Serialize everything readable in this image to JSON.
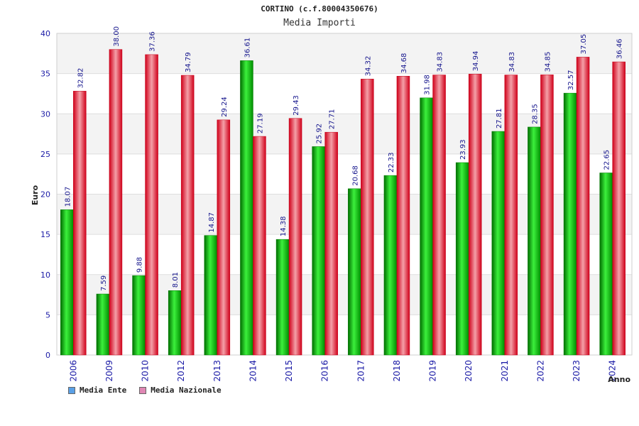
{
  "chart_data": {
    "type": "bar",
    "title": "CORTINO (c.f.80004350676)",
    "subtitle": "Media Importi",
    "xlabel": "Anno",
    "ylabel": "Euro",
    "ylim": [
      0,
      40
    ],
    "yticks": [
      0,
      5,
      10,
      15,
      20,
      25,
      30,
      35,
      40
    ],
    "grid": true,
    "legend_position": "bottom-left",
    "categories": [
      "2006",
      "2009",
      "2010",
      "2012",
      "2013",
      "2014",
      "2015",
      "2016",
      "2017",
      "2018",
      "2019",
      "2020",
      "2021",
      "2022",
      "2023",
      "2024"
    ],
    "series": [
      {
        "name": "Media Ente",
        "color": "#00b400",
        "legend_color": "#5aa0e6",
        "values": [
          18.07,
          7.59,
          9.88,
          8.01,
          14.87,
          36.61,
          14.38,
          25.92,
          20.68,
          22.33,
          31.98,
          23.93,
          27.81,
          28.35,
          32.57,
          22.65
        ]
      },
      {
        "name": "Media Nazionale",
        "color": "#e8192c",
        "legend_color": "#e087b4",
        "values": [
          32.82,
          38.0,
          37.36,
          34.79,
          29.24,
          27.19,
          29.43,
          27.71,
          34.32,
          34.68,
          34.83,
          34.94,
          34.83,
          34.85,
          37.05,
          36.46
        ]
      }
    ],
    "data_labels": {
      "series_0": [
        "18.07",
        "7.59",
        "9.88",
        "8.01",
        "14.87",
        "36.61",
        "14.38",
        "25.92",
        "20.68",
        "22.33",
        "31.98",
        "23.93",
        "27.81",
        "28.35",
        "32.57",
        "22.65"
      ],
      "series_1": [
        "32.82",
        "38.00",
        "37.36",
        "34.79",
        "29.24",
        "27.19",
        "29.43",
        "27.71",
        "34.32",
        "34.68",
        "34.83",
        "34.94",
        "34.83",
        "34.85",
        "37.05",
        "36.46"
      ]
    }
  }
}
